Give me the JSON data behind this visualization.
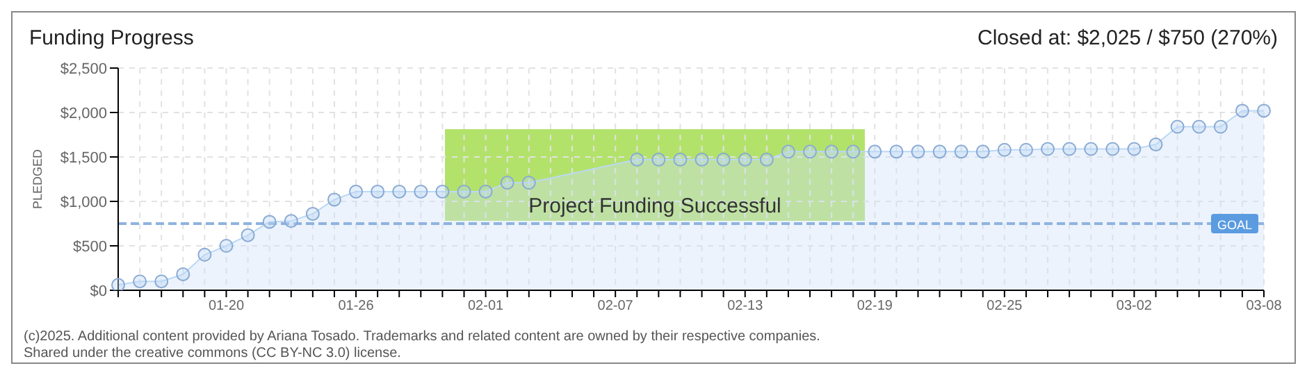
{
  "chart_data": {
    "type": "area",
    "title": "Funding Progress",
    "subtitle": "Closed at: $2,025 / $750 (270%)",
    "ylabel": "PLEDGED",
    "categories": [
      null,
      null,
      null,
      null,
      null,
      "01-20",
      null,
      null,
      null,
      null,
      null,
      "01-26",
      null,
      null,
      null,
      null,
      null,
      "02-01",
      null,
      null,
      null,
      null,
      null,
      "02-07",
      null,
      null,
      null,
      null,
      null,
      "02-13",
      null,
      null,
      null,
      null,
      null,
      "02-19",
      null,
      null,
      null,
      null,
      null,
      "02-25",
      null,
      null,
      null,
      null,
      null,
      "03-02",
      null,
      null,
      null,
      null,
      null,
      "03-08"
    ],
    "series": [
      {
        "color": "#bcd8f5",
        "values": [
          60,
          100,
          100,
          180,
          400,
          500,
          620,
          770,
          780,
          860,
          1020,
          1110,
          1110,
          1110,
          1110,
          1110,
          1110,
          1110,
          1210,
          1210,
          null,
          null,
          null,
          null,
          1470,
          1470,
          1470,
          1470,
          1470,
          1470,
          1470,
          1560,
          1560,
          1560,
          1560,
          1560,
          1560,
          1560,
          1560,
          1560,
          1560,
          1580,
          1580,
          1590,
          1590,
          1590,
          1590,
          1590,
          1640,
          1840,
          1840,
          1840,
          2020,
          2020
        ]
      }
    ],
    "ylim": [
      0,
      2500
    ],
    "yticks": [
      {
        "value": 0,
        "label": "$0"
      },
      {
        "value": 500,
        "label": "$500"
      },
      {
        "value": 1000,
        "label": "$1,000"
      },
      {
        "value": 1500,
        "label": "$1,500"
      },
      {
        "value": 2000,
        "label": "$2,000"
      },
      {
        "value": 2500,
        "label": "$2,500"
      }
    ],
    "grid": true,
    "marker": "circle",
    "line_style": "solid",
    "ref_lines": [
      {
        "axis": "y",
        "value": 750,
        "label": "GOAL",
        "color": "#8fb3e0",
        "line_style": "dashed"
      }
    ],
    "annotations": [
      "Project Funding Successful",
      "(c)2025. Additional content provided by Ariana Tosado. Trademarks and related content are owned by their respective companies.",
      "Shared under the creative commons (CC BY-NC 3.0) license."
    ]
  }
}
